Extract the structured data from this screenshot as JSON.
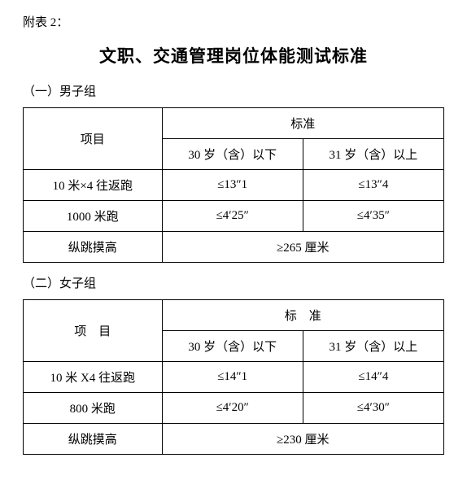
{
  "attach_label": "附表 2：",
  "main_title": "文职、交通管理岗位体能测试标准",
  "male": {
    "group_label": "（一）男子组",
    "header_item": "项目",
    "header_standard": "标准",
    "header_under30": "30 岁（含）以下",
    "header_over31": "31 岁（含）以上",
    "row1_item": "10 米×4 往返跑",
    "row1_u30": "≤13″1",
    "row1_o31": "≤13″4",
    "row2_item": "1000 米跑",
    "row2_u30": "≤4′25″",
    "row2_o31": "≤4′35″",
    "row3_item": "纵跳摸高",
    "row3_merged": "≥265 厘米"
  },
  "female": {
    "group_label": "（二）女子组",
    "header_item": "项　目",
    "header_standard": "标　准",
    "header_under30": "30 岁（含）以下",
    "header_over31": "31 岁（含）以上",
    "row1_item": "10 米 X4 往返跑",
    "row1_u30": "≤14″1",
    "row1_o31": "≤14″4",
    "row2_item": "800 米跑",
    "row2_u30": "≤4′20″",
    "row2_o31": "≤4′30″",
    "row3_item": "纵跳摸高",
    "row3_merged": "≥230 厘米"
  }
}
